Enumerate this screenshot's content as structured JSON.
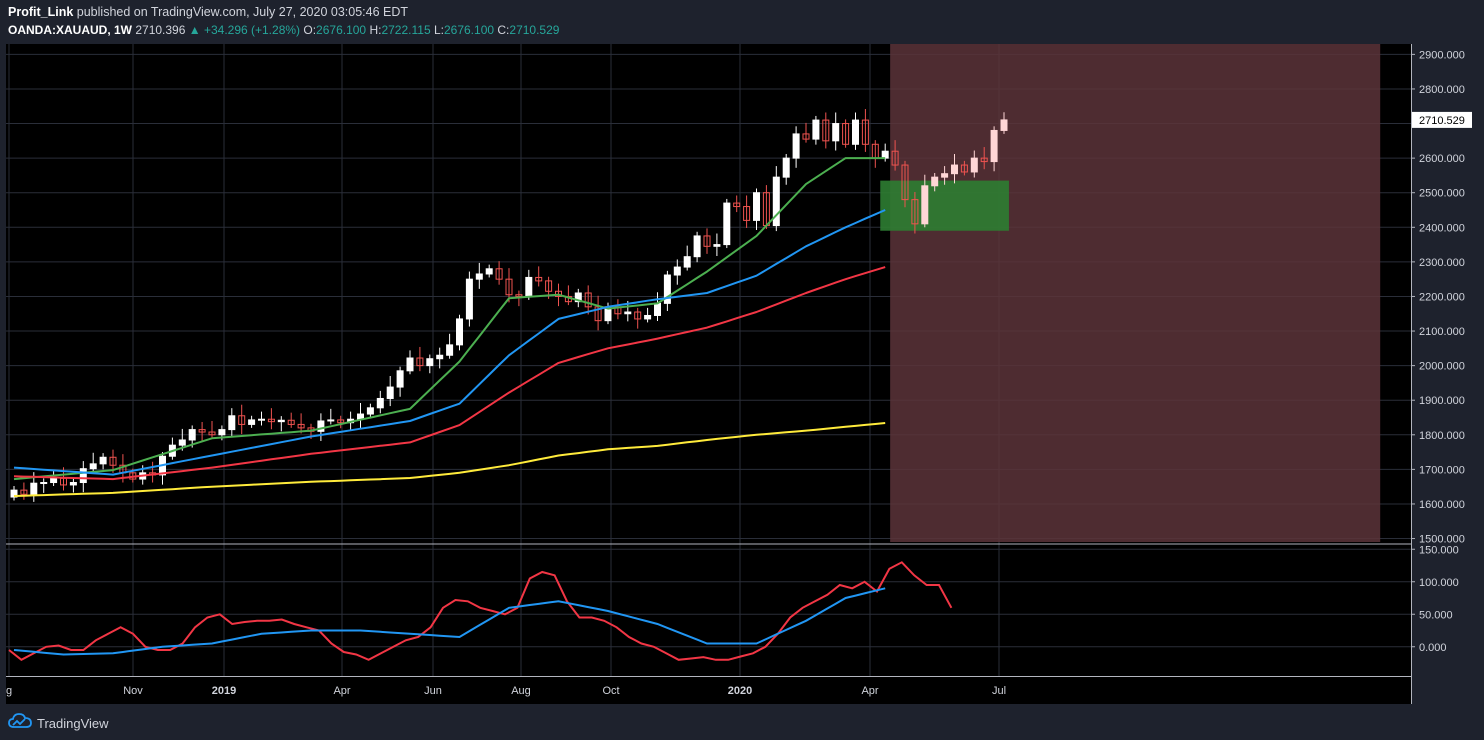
{
  "header": {
    "author": "Profit_Link",
    "published": "published on TradingView.com, July 27, 2020 03:05:46 EDT",
    "symbol": "OANDA:XAUAUD, 1W",
    "last": "2710.396",
    "change": "▲ +34.296 (+1.28%)",
    "o_label": "O:",
    "o_value": "2676.100",
    "h_label": "H:",
    "h_value": "2722.115",
    "l_label": "L:",
    "l_value": "2676.100",
    "c_label": "C:",
    "c_value": "2710.529"
  },
  "footer": {
    "brand": "TradingView",
    "icon": "tradingview-cloud-icon"
  },
  "colors": {
    "background": "#000000",
    "frame": "#1e222d",
    "up_candle": "#ffffff",
    "down_candle": "#ef5350",
    "ma_green": "#4caf50",
    "ma_blue": "#2196f3",
    "ma_red": "#f23645",
    "ma_yellow": "#ffeb3b",
    "zone_brown": "#5c3439",
    "zone_green": "#2e7d32"
  },
  "chart_data": [
    {
      "type": "candlestick",
      "panel": "price",
      "timeframe": "1W",
      "y_ticks": [
        "2900.000",
        "2800.000",
        "2700.000",
        "2600.000",
        "2500.000",
        "2400.000",
        "2300.000",
        "2200.000",
        "2100.000",
        "2000.000",
        "1900.000",
        "1800.000",
        "1700.000",
        "1600.000",
        "1500.000"
      ],
      "ylim": [
        1490,
        2930
      ],
      "last_price_label": "2710.529",
      "x_labels": [
        "g",
        "Nov",
        "2019",
        "Apr",
        "Jun",
        "Aug",
        "Oct",
        "2020",
        "Apr",
        "Jul"
      ],
      "x_labels_bold": [
        "2019",
        "2020"
      ],
      "grid": true,
      "close": [
        1640,
        1628,
        1660,
        1662,
        1674,
        1655,
        1662,
        1702,
        1716,
        1735,
        1712,
        1690,
        1672,
        1690,
        1684,
        1738,
        1770,
        1785,
        1815,
        1808,
        1800,
        1815,
        1855,
        1830,
        1843,
        1845,
        1838,
        1842,
        1830,
        1820,
        1810,
        1840,
        1843,
        1835,
        1845,
        1860,
        1878,
        1905,
        1938,
        1985,
        2022,
        2000,
        2020,
        2030,
        2060,
        2135,
        2250,
        2265,
        2280,
        2250,
        2205,
        2200,
        2255,
        2245,
        2215,
        2200,
        2185,
        2210,
        2170,
        2130,
        2170,
        2150,
        2155,
        2135,
        2145,
        2180,
        2262,
        2285,
        2315,
        2375,
        2345,
        2350,
        2470,
        2460,
        2420,
        2500,
        2405,
        2545,
        2600,
        2670,
        2655,
        2710,
        2650,
        2700,
        2640,
        2710,
        2640,
        2600,
        2620,
        2580,
        2480,
        2410,
        2520,
        2545,
        2555,
        2580,
        2560,
        2600,
        2590,
        2680,
        2710.5
      ],
      "series": [
        {
          "name": "",
          "color": "#4caf50",
          "anchors": [
            [
              0,
              1672
            ],
            [
              10,
              1698
            ],
            [
              20,
              1790
            ],
            [
              30,
              1812
            ],
            [
              40,
              1875
            ],
            [
              45,
              2012
            ],
            [
              50,
              2195
            ],
            [
              55,
              2205
            ],
            [
              60,
              2165
            ],
            [
              65,
              2180
            ],
            [
              70,
              2272
            ],
            [
              75,
              2375
            ],
            [
              80,
              2525
            ],
            [
              84,
              2600
            ],
            [
              88,
              2600
            ]
          ]
        },
        {
          "name": "",
          "color": "#2196f3",
          "anchors": [
            [
              0,
              1705
            ],
            [
              10,
              1685
            ],
            [
              20,
              1740
            ],
            [
              30,
              1795
            ],
            [
              40,
              1840
            ],
            [
              45,
              1890
            ],
            [
              50,
              2030
            ],
            [
              55,
              2135
            ],
            [
              60,
              2170
            ],
            [
              65,
              2192
            ],
            [
              70,
              2210
            ],
            [
              75,
              2260
            ],
            [
              80,
              2345
            ],
            [
              84,
              2400
            ],
            [
              88,
              2450
            ]
          ]
        },
        {
          "name": "",
          "color": "#f23645",
          "anchors": [
            [
              0,
              1680
            ],
            [
              10,
              1672
            ],
            [
              20,
              1705
            ],
            [
              30,
              1745
            ],
            [
              40,
              1778
            ],
            [
              45,
              1828
            ],
            [
              50,
              1922
            ],
            [
              55,
              2008
            ],
            [
              60,
              2050
            ],
            [
              65,
              2078
            ],
            [
              70,
              2110
            ],
            [
              75,
              2155
            ],
            [
              80,
              2210
            ],
            [
              84,
              2250
            ],
            [
              88,
              2285
            ]
          ]
        },
        {
          "name": "",
          "color": "#ffeb3b",
          "anchors": [
            [
              0,
              1623
            ],
            [
              10,
              1632
            ],
            [
              20,
              1650
            ],
            [
              30,
              1664
            ],
            [
              40,
              1675
            ],
            [
              45,
              1690
            ],
            [
              50,
              1712
            ],
            [
              55,
              1740
            ],
            [
              60,
              1758
            ],
            [
              65,
              1768
            ],
            [
              70,
              1785
            ],
            [
              75,
              1800
            ],
            [
              80,
              1812
            ],
            [
              84,
              1823
            ],
            [
              88,
              1834
            ]
          ]
        }
      ],
      "zones": [
        {
          "name": "projection-zone",
          "color": "#5c3439",
          "x_from": 88.5,
          "x_to": 138,
          "y_from": 1490,
          "y_to": 2930
        },
        {
          "name": "support-zone",
          "color": "#2e7d32",
          "x_from": 87.5,
          "x_to": 100.5,
          "y_from": 2390,
          "y_to": 2535
        }
      ]
    },
    {
      "type": "line",
      "panel": "oscillator",
      "y_ticks": [
        "150.000",
        "100.000",
        "50.000",
        "0.000"
      ],
      "ylim": [
        -45,
        155
      ],
      "series": [
        {
          "name": "",
          "color": "#f23645",
          "values": [
            -5,
            -20,
            -10,
            0,
            2,
            -5,
            -5,
            10,
            20,
            30,
            20,
            0,
            -5,
            -5,
            5,
            30,
            45,
            50,
            35,
            38,
            40,
            40,
            42,
            35,
            30,
            25,
            5,
            -8,
            -12,
            -20,
            -10,
            0,
            10,
            15,
            30,
            60,
            72,
            70,
            60,
            55,
            50,
            60,
            105,
            115,
            110,
            70,
            45,
            45,
            40,
            30,
            15,
            5,
            0,
            -10,
            -20,
            -18,
            -16,
            -20,
            -20,
            -15,
            -10,
            0,
            20,
            45,
            60,
            70,
            80,
            95,
            90,
            100,
            85,
            120,
            130,
            110,
            95,
            95,
            60
          ]
        },
        {
          "name": "",
          "color": "#2196f3",
          "anchors": [
            [
              0,
              -5
            ],
            [
              5,
              -12
            ],
            [
              10,
              -10
            ],
            [
              15,
              0
            ],
            [
              20,
              5
            ],
            [
              25,
              20
            ],
            [
              30,
              25
            ],
            [
              35,
              25
            ],
            [
              40,
              20
            ],
            [
              45,
              15
            ],
            [
              50,
              60
            ],
            [
              55,
              70
            ],
            [
              60,
              55
            ],
            [
              65,
              35
            ],
            [
              70,
              5
            ],
            [
              75,
              5
            ],
            [
              80,
              40
            ],
            [
              84,
              75
            ],
            [
              88,
              90
            ]
          ]
        }
      ]
    }
  ]
}
